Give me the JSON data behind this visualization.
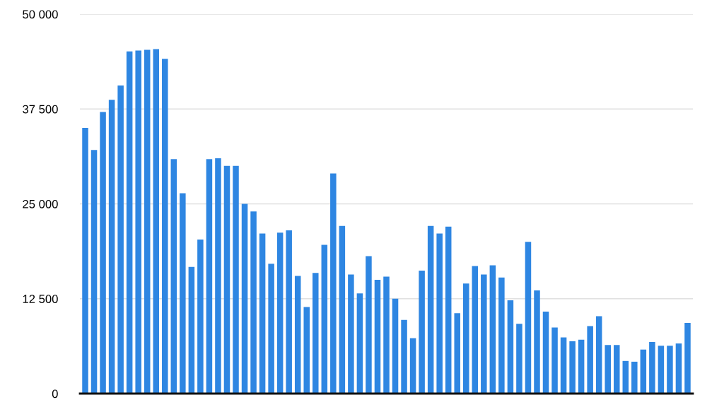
{
  "chart_data": {
    "type": "bar",
    "categories": [
      null,
      null,
      null,
      null,
      null,
      null,
      null,
      null,
      null,
      null,
      null,
      null,
      null,
      null,
      null,
      null,
      null,
      null,
      null,
      null,
      null,
      null,
      null,
      null,
      null,
      null,
      null,
      null,
      null,
      null,
      null,
      null,
      null,
      null,
      null,
      null,
      null,
      null,
      null,
      null,
      null,
      null,
      null,
      null,
      null,
      null,
      null,
      null,
      null,
      null,
      null,
      null,
      null,
      null,
      null,
      null,
      null,
      null,
      null,
      null,
      null,
      null,
      null,
      null,
      null,
      null,
      null,
      null,
      null
    ],
    "series": [
      {
        "color": "#2e86e2",
        "values": [
          35000,
          32100,
          37100,
          38700,
          40600,
          45100,
          45200,
          45300,
          45400,
          44100,
          30900,
          26400,
          16700,
          20300,
          30900,
          31000,
          30000,
          30000,
          25000,
          24000,
          21100,
          17100,
          21200,
          21500,
          15500,
          11400,
          15900,
          19600,
          29000,
          22100,
          15700,
          13200,
          18100,
          15000,
          15400,
          12500,
          9700,
          7300,
          16200,
          22100,
          21100,
          22000,
          10600,
          14500,
          16800,
          15700,
          16900,
          15300,
          12300,
          9200,
          20000,
          13600,
          10800,
          8700,
          7400,
          6900,
          7100,
          8900,
          10200,
          6400,
          6400,
          4300,
          4200,
          5800,
          6800,
          6300,
          6300,
          6600,
          9300
        ]
      }
    ],
    "ylim": [
      0,
      50000
    ],
    "yticks": [
      {
        "value": 0,
        "label": "0"
      },
      {
        "value": 12500,
        "label": "12 500"
      },
      {
        "value": 25000,
        "label": "25 000"
      },
      {
        "value": 37500,
        "label": "37 500"
      },
      {
        "value": 50000,
        "label": "50 000"
      }
    ],
    "grid": "y"
  }
}
